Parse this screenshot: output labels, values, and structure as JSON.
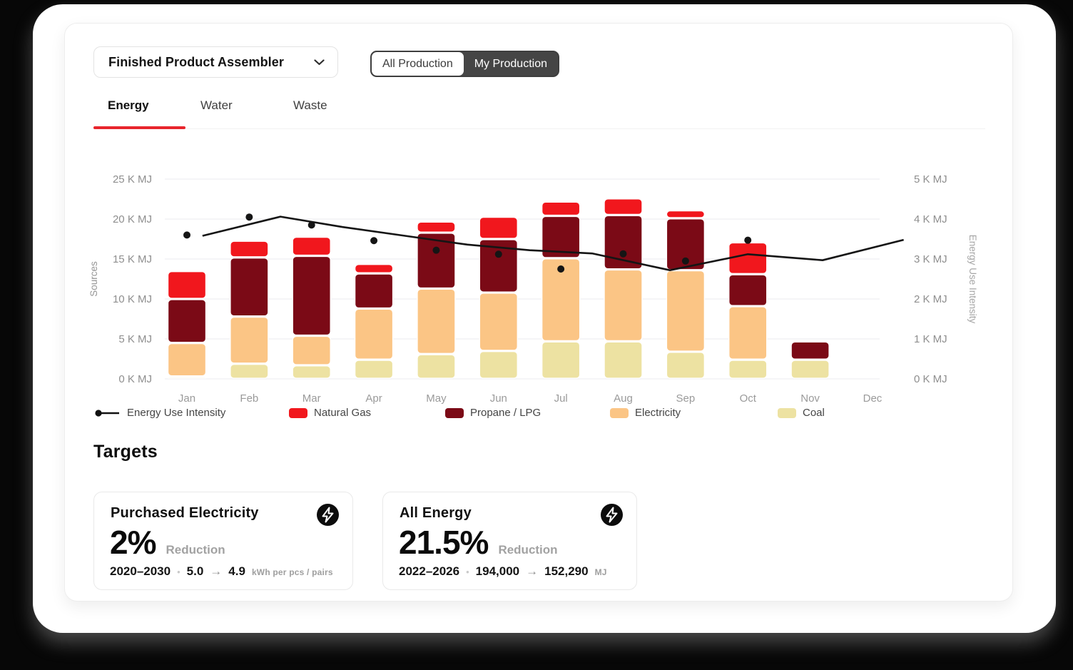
{
  "theme": {
    "accent": "#E8252C",
    "line_color": "#151515"
  },
  "header": {
    "dropdown_label": "Finished Product Assembler",
    "toggle": {
      "options": [
        "All Production",
        "My Production"
      ],
      "selected": "My Production"
    }
  },
  "tabs": [
    {
      "label": "Energy",
      "active": true
    },
    {
      "label": "Water",
      "active": false
    },
    {
      "label": "Waste",
      "active": false
    }
  ],
  "chart_data": {
    "type": "bar",
    "subtype": "stacked-bars-with-line-overlay",
    "categories": [
      "Jan",
      "Feb",
      "Mar",
      "Apr",
      "May",
      "Jun",
      "Jul",
      "Aug",
      "Sep",
      "Oct",
      "Nov",
      "Dec"
    ],
    "left_axis": {
      "label": "Sources",
      "ticks": [
        "0 K MJ",
        "5 K MJ",
        "10 K MJ",
        "15 K MJ",
        "20 K MJ",
        "25 K MJ"
      ],
      "min": 0,
      "max": 25,
      "grid": true
    },
    "right_axis": {
      "label": "Energy Use Intensity",
      "ticks": [
        "0 K MJ",
        "1 K MJ",
        "2 K MJ",
        "3 K MJ",
        "4 K MJ",
        "5 K MJ"
      ],
      "min": 0,
      "max": 5
    },
    "series": [
      {
        "name": "Coal",
        "type": "bar",
        "color": "#EDE2A2",
        "values": [
          0.3,
          1.9,
          1.7,
          2.4,
          3.1,
          3.5,
          4.7,
          4.7,
          3.4,
          2.4,
          2.4,
          0
        ]
      },
      {
        "name": "Electricity",
        "type": "bar",
        "color": "#FBC585",
        "values": [
          4.2,
          5.9,
          3.7,
          6.4,
          8.2,
          7.3,
          10.4,
          9.0,
          10.2,
          6.7,
          0,
          0
        ]
      },
      {
        "name": "Propane / LPG",
        "type": "bar",
        "color": "#7B0A16",
        "values": [
          5.5,
          7.4,
          10.0,
          4.4,
          7.0,
          6.7,
          5.3,
          6.8,
          6.5,
          4.0,
          2.3,
          0
        ]
      },
      {
        "name": "Natural Gas",
        "type": "bar",
        "color": "#F1171D",
        "values": [
          3.5,
          2.1,
          2.4,
          1.2,
          1.4,
          2.8,
          1.8,
          2.1,
          1.0,
          4.0,
          0,
          0
        ]
      }
    ],
    "intensity_points": {
      "name": "Energy Use Intensity",
      "axis": "right",
      "values": [
        3.6,
        4.05,
        3.85,
        3.46,
        3.22,
        3.12,
        2.75,
        3.13,
        2.95,
        3.47,
        null,
        null
      ]
    },
    "intensity_line": {
      "name": "Energy Use Intensity",
      "axis": "right",
      "points": [
        [
          0.25,
          3.58
        ],
        [
          1.5,
          4.06
        ],
        [
          2.5,
          3.8
        ],
        [
          3.5,
          3.58
        ],
        [
          4.5,
          3.36
        ],
        [
          5.5,
          3.22
        ],
        [
          6.5,
          3.14
        ],
        [
          7.75,
          2.72
        ],
        [
          9.0,
          3.12
        ],
        [
          10.2,
          2.97
        ],
        [
          11.5,
          3.48
        ]
      ]
    },
    "legend_position": "bottom"
  },
  "legend": [
    {
      "label": "Energy Use Intensity",
      "type": "line"
    },
    {
      "label": "Natural Gas",
      "type": "swatch",
      "color": "#F1171D"
    },
    {
      "label": "Propane / LPG",
      "type": "swatch",
      "color": "#7B0A16"
    },
    {
      "label": "Electricity",
      "type": "swatch",
      "color": "#FBC585"
    },
    {
      "label": "Coal",
      "type": "swatch",
      "color": "#EDE2A2"
    }
  ],
  "targets": {
    "heading": "Targets",
    "cards": [
      {
        "title": "Purchased Electricity",
        "value": "2%",
        "suffix": "Reduction",
        "range": "2020–2030",
        "from": "5.0",
        "to": "4.9",
        "unit": "kWh per pcs / pairs"
      },
      {
        "title": "All Energy",
        "value": "21.5%",
        "suffix": "Reduction",
        "range": "2022–2026",
        "from": "194,000",
        "to": "152,290",
        "unit": "MJ"
      }
    ]
  }
}
